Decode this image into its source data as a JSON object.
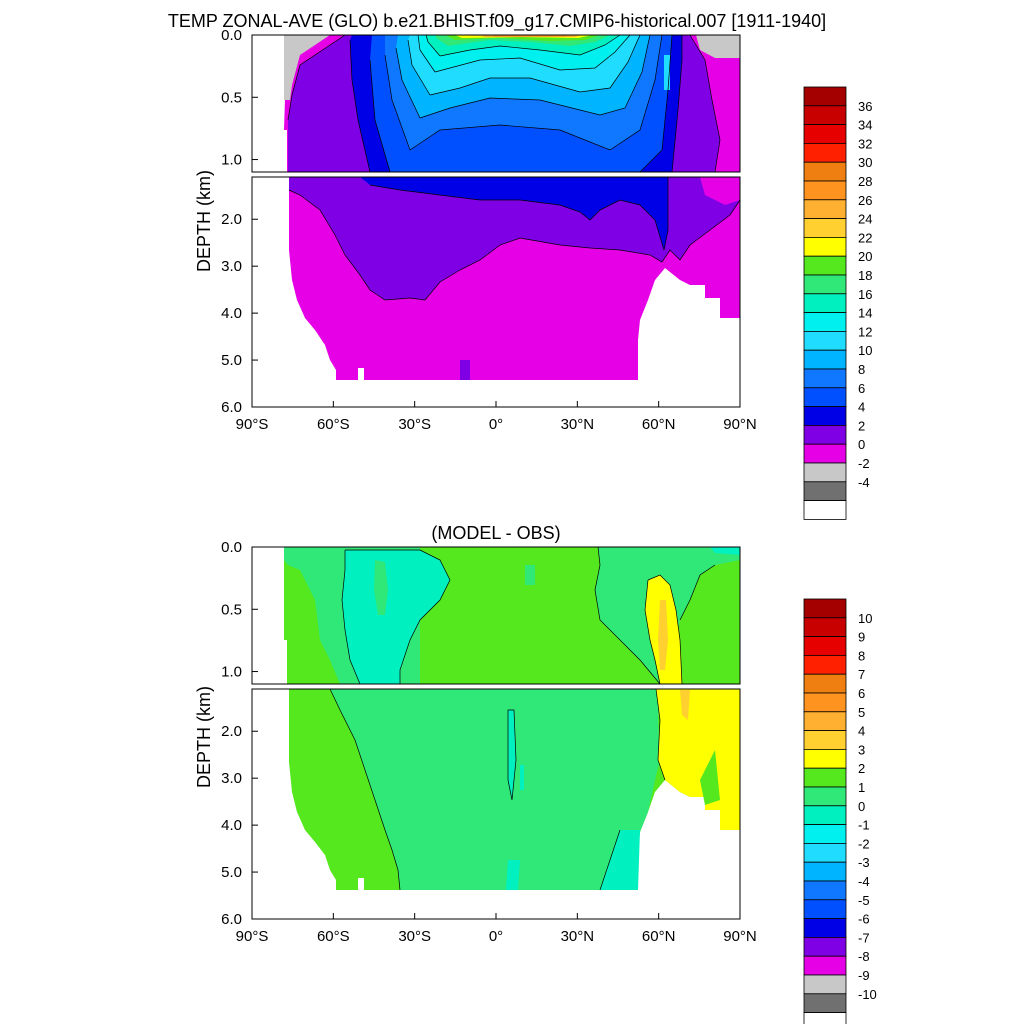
{
  "chart_data": [
    {
      "type": "contour",
      "title": "TEMP ZONAL-AVE (GLO) b.e21.BHIST.f09_g17.CMIP6-historical.007 [1911-1940]",
      "ylabel": "DEPTH (km)",
      "xlabel": "",
      "x_range": [
        -90,
        90
      ],
      "y_range_upper_km": [
        0.0,
        1.1
      ],
      "y_range_lower_km": [
        1.1,
        6.0
      ],
      "x_ticks": [
        "90°S",
        "60°S",
        "30°S",
        "0°",
        "30°N",
        "60°N",
        "90°N"
      ],
      "y_ticks_upper": [
        "0.0",
        "0.5",
        "1.0"
      ],
      "y_ticks_lower": [
        "2.0",
        "3.0",
        "4.0",
        "5.0",
        "6.0"
      ],
      "colorbar": {
        "labels": [
          "36",
          "34",
          "32",
          "30",
          "28",
          "26",
          "24",
          "22",
          "20",
          "18",
          "16",
          "14",
          "12",
          "10",
          "8",
          "6",
          "4",
          "2",
          "0",
          "-2",
          "-4"
        ],
        "colors": [
          "#a50000",
          "#c80000",
          "#e60000",
          "#ff2000",
          "#ef7f10",
          "#ff9320",
          "#ffb030",
          "#ffd030",
          "#ffff00",
          "#55e81f",
          "#30e878",
          "#00f0c0",
          "#00f0f0",
          "#20dcff",
          "#00b4ff",
          "#0f78ff",
          "#0050ff",
          "#0000e6",
          "#8000e6",
          "#e600e6",
          "#c8c8c8",
          "#707070",
          "#ffffff"
        ]
      }
    },
    {
      "type": "contour",
      "title": "(MODEL - OBS)",
      "ylabel": "DEPTH (km)",
      "xlabel": "",
      "x_range": [
        -90,
        90
      ],
      "y_range_upper_km": [
        0.0,
        1.1
      ],
      "y_range_lower_km": [
        1.1,
        6.0
      ],
      "x_ticks": [
        "90°S",
        "60°S",
        "30°S",
        "0°",
        "30°N",
        "60°N",
        "90°N"
      ],
      "y_ticks_upper": [
        "0.0",
        "0.5",
        "1.0"
      ],
      "y_ticks_lower": [
        "2.0",
        "3.0",
        "4.0",
        "5.0",
        "6.0"
      ],
      "colorbar": {
        "labels": [
          "10",
          "9",
          "8",
          "7",
          "6",
          "5",
          "4",
          "3",
          "2",
          "1",
          "0",
          "-1",
          "-2",
          "-3",
          "-4",
          "-5",
          "-6",
          "-7",
          "-8",
          "-9",
          "-10"
        ],
        "colors": [
          "#a50000",
          "#c80000",
          "#e60000",
          "#ff2000",
          "#ef7f10",
          "#ff9320",
          "#ffb030",
          "#ffd030",
          "#ffff00",
          "#55e81f",
          "#30e878",
          "#00f0c0",
          "#00f0f0",
          "#20dcff",
          "#00b4ff",
          "#0f78ff",
          "#0050ff",
          "#0000e6",
          "#8000e6",
          "#e600e6",
          "#c8c8c8",
          "#707070",
          "#ffffff"
        ]
      }
    }
  ]
}
